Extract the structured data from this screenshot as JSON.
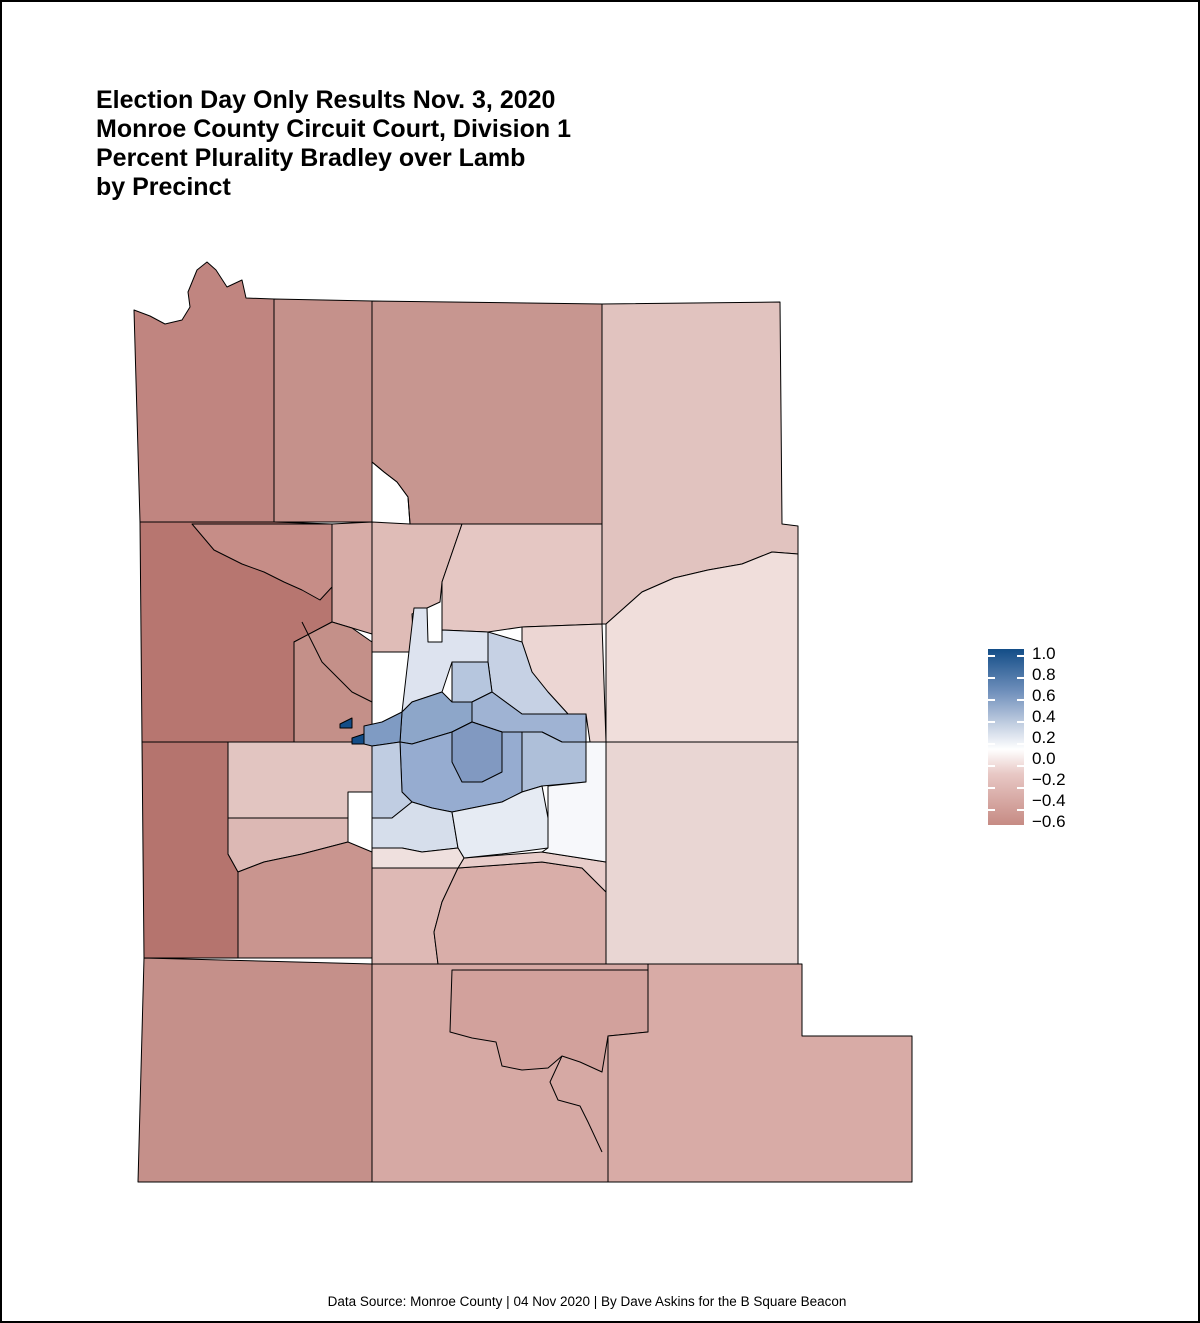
{
  "title_lines": [
    "Election Day Only Results Nov. 3, 2020",
    "Monroe County Circuit Court, Division 1",
    "Percent Plurality Bradley over Lamb",
    "by Precinct"
  ],
  "legend": {
    "labels": [
      "1.0",
      "0.8",
      "0.6",
      "0.4",
      "0.2",
      "0.0",
      "−0.2",
      "−0.4",
      "−0.6"
    ],
    "range": [
      -0.6,
      1.0
    ],
    "colors": {
      "high": "#134d87",
      "mid": "#ffffff",
      "low": "#c68b84"
    }
  },
  "caption": "Data Source: Monroe County | 04 Nov 2020 | By Dave Askins for the B Square Beacon",
  "colors": {
    "strong_red": "#b77670",
    "red": "#c5918b",
    "light_red": "#dbb5b0",
    "pale_red": "#e9d1cd",
    "faint_red": "#f2e3e1",
    "white": "#fbfbfd",
    "pale_blue": "#dfe4ef",
    "light_blue": "#c3cfe2",
    "blue": "#a4b6d3",
    "mid_blue": "#8aa3c7",
    "deep_blue": "#134d87"
  }
}
